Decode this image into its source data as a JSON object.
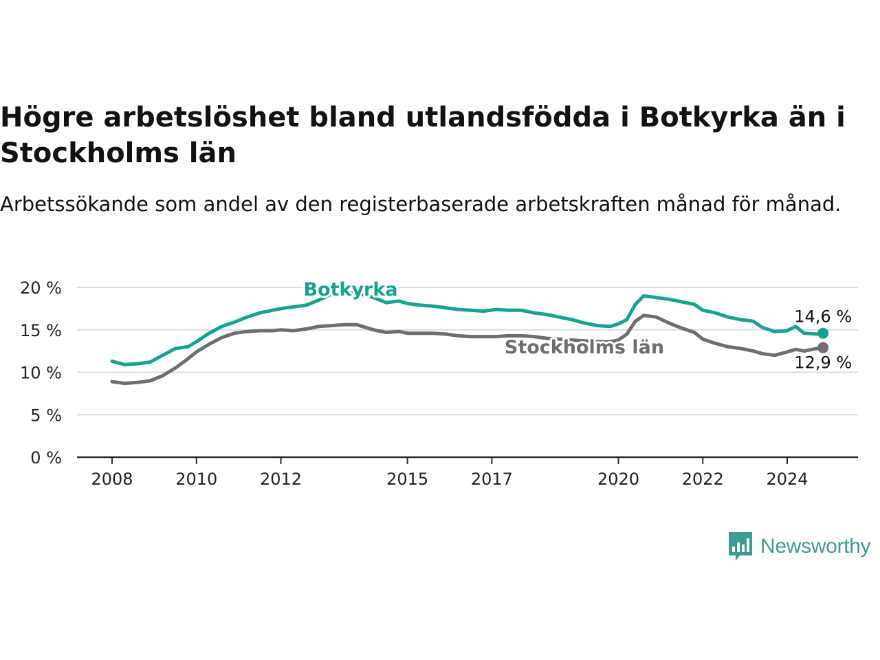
{
  "title": "Högre arbetslöshet bland utlandsfödda i Botkyrka än i Stockholms län",
  "subtitle": "Arbetssökande som andel av den registerbaserade arbetskraften månad för månad.",
  "brand": {
    "name": "Newsworthy",
    "icon": "bar-chart-speech-bubble-icon",
    "color": "#3e9b91"
  },
  "chart_data": {
    "type": "line",
    "ylim": [
      0,
      20
    ],
    "xlim": [
      2008,
      2025
    ],
    "y_ticks": [
      {
        "value": 0,
        "label": "0 %"
      },
      {
        "value": 5,
        "label": "5 %"
      },
      {
        "value": 10,
        "label": "10 %"
      },
      {
        "value": 15,
        "label": "15 %"
      },
      {
        "value": 20,
        "label": "20 %"
      }
    ],
    "x_ticks": [
      {
        "value": 2008,
        "label": "2008"
      },
      {
        "value": 2010,
        "label": "2010"
      },
      {
        "value": 2012,
        "label": "2012"
      },
      {
        "value": 2015,
        "label": "2015"
      },
      {
        "value": 2017,
        "label": "2017"
      },
      {
        "value": 2020,
        "label": "2020"
      },
      {
        "value": 2022,
        "label": "2022"
      },
      {
        "value": 2024,
        "label": "2024"
      }
    ],
    "grid": true,
    "series": [
      {
        "name": "Botkyrka",
        "color": "#14a394",
        "end_label": "14,6 %",
        "points": [
          [
            2008.0,
            11.3
          ],
          [
            2008.3,
            10.9
          ],
          [
            2008.6,
            11.0
          ],
          [
            2008.9,
            11.2
          ],
          [
            2009.2,
            12.0
          ],
          [
            2009.5,
            12.8
          ],
          [
            2009.8,
            13.0
          ],
          [
            2010.0,
            13.6
          ],
          [
            2010.3,
            14.6
          ],
          [
            2010.6,
            15.4
          ],
          [
            2010.9,
            15.9
          ],
          [
            2011.2,
            16.5
          ],
          [
            2011.5,
            17.0
          ],
          [
            2011.8,
            17.3
          ],
          [
            2012.0,
            17.5
          ],
          [
            2012.3,
            17.7
          ],
          [
            2012.6,
            17.9
          ],
          [
            2012.9,
            18.5
          ],
          [
            2013.2,
            19.2
          ],
          [
            2013.5,
            19.4
          ],
          [
            2013.8,
            19.3
          ],
          [
            2014.2,
            18.8
          ],
          [
            2014.5,
            18.2
          ],
          [
            2014.8,
            18.4
          ],
          [
            2015.0,
            18.1
          ],
          [
            2015.3,
            17.9
          ],
          [
            2015.6,
            17.8
          ],
          [
            2015.9,
            17.6
          ],
          [
            2016.2,
            17.4
          ],
          [
            2016.5,
            17.3
          ],
          [
            2016.8,
            17.2
          ],
          [
            2017.1,
            17.4
          ],
          [
            2017.4,
            17.3
          ],
          [
            2017.7,
            17.3
          ],
          [
            2018.0,
            17.0
          ],
          [
            2018.3,
            16.8
          ],
          [
            2018.6,
            16.5
          ],
          [
            2018.9,
            16.2
          ],
          [
            2019.2,
            15.8
          ],
          [
            2019.5,
            15.5
          ],
          [
            2019.8,
            15.4
          ],
          [
            2020.0,
            15.7
          ],
          [
            2020.2,
            16.2
          ],
          [
            2020.4,
            18.0
          ],
          [
            2020.6,
            19.0
          ],
          [
            2020.9,
            18.8
          ],
          [
            2021.2,
            18.6
          ],
          [
            2021.5,
            18.3
          ],
          [
            2021.8,
            18.0
          ],
          [
            2022.0,
            17.3
          ],
          [
            2022.3,
            17.0
          ],
          [
            2022.6,
            16.5
          ],
          [
            2022.9,
            16.2
          ],
          [
            2023.2,
            16.0
          ],
          [
            2023.4,
            15.3
          ],
          [
            2023.7,
            14.8
          ],
          [
            2024.0,
            14.9
          ],
          [
            2024.2,
            15.4
          ],
          [
            2024.4,
            14.6
          ],
          [
            2024.7,
            14.5
          ],
          [
            2024.85,
            14.6
          ]
        ]
      },
      {
        "name": "Stockholms län",
        "color": "#6d6d72",
        "end_label": "12,9 %",
        "points": [
          [
            2008.0,
            8.9
          ],
          [
            2008.3,
            8.7
          ],
          [
            2008.6,
            8.8
          ],
          [
            2008.9,
            9.0
          ],
          [
            2009.2,
            9.6
          ],
          [
            2009.5,
            10.5
          ],
          [
            2009.8,
            11.6
          ],
          [
            2010.0,
            12.4
          ],
          [
            2010.3,
            13.3
          ],
          [
            2010.6,
            14.1
          ],
          [
            2010.9,
            14.6
          ],
          [
            2011.2,
            14.8
          ],
          [
            2011.5,
            14.9
          ],
          [
            2011.8,
            14.9
          ],
          [
            2012.0,
            15.0
          ],
          [
            2012.3,
            14.9
          ],
          [
            2012.6,
            15.1
          ],
          [
            2012.9,
            15.4
          ],
          [
            2013.2,
            15.5
          ],
          [
            2013.5,
            15.6
          ],
          [
            2013.8,
            15.6
          ],
          [
            2014.2,
            15.0
          ],
          [
            2014.5,
            14.7
          ],
          [
            2014.8,
            14.8
          ],
          [
            2015.0,
            14.6
          ],
          [
            2015.3,
            14.6
          ],
          [
            2015.6,
            14.6
          ],
          [
            2015.9,
            14.5
          ],
          [
            2016.2,
            14.3
          ],
          [
            2016.5,
            14.2
          ],
          [
            2016.8,
            14.2
          ],
          [
            2017.1,
            14.2
          ],
          [
            2017.4,
            14.3
          ],
          [
            2017.7,
            14.3
          ],
          [
            2018.0,
            14.2
          ],
          [
            2018.3,
            14.0
          ],
          [
            2018.6,
            13.9
          ],
          [
            2018.9,
            13.8
          ],
          [
            2019.2,
            13.7
          ],
          [
            2019.5,
            13.6
          ],
          [
            2019.8,
            13.6
          ],
          [
            2020.0,
            13.8
          ],
          [
            2020.2,
            14.5
          ],
          [
            2020.4,
            16.0
          ],
          [
            2020.6,
            16.7
          ],
          [
            2020.9,
            16.5
          ],
          [
            2021.2,
            15.8
          ],
          [
            2021.5,
            15.2
          ],
          [
            2021.8,
            14.7
          ],
          [
            2022.0,
            13.9
          ],
          [
            2022.3,
            13.4
          ],
          [
            2022.6,
            13.0
          ],
          [
            2022.9,
            12.8
          ],
          [
            2023.2,
            12.5
          ],
          [
            2023.4,
            12.2
          ],
          [
            2023.7,
            12.0
          ],
          [
            2024.0,
            12.4
          ],
          [
            2024.2,
            12.7
          ],
          [
            2024.4,
            12.5
          ],
          [
            2024.7,
            12.8
          ],
          [
            2024.85,
            12.9
          ]
        ]
      }
    ]
  }
}
